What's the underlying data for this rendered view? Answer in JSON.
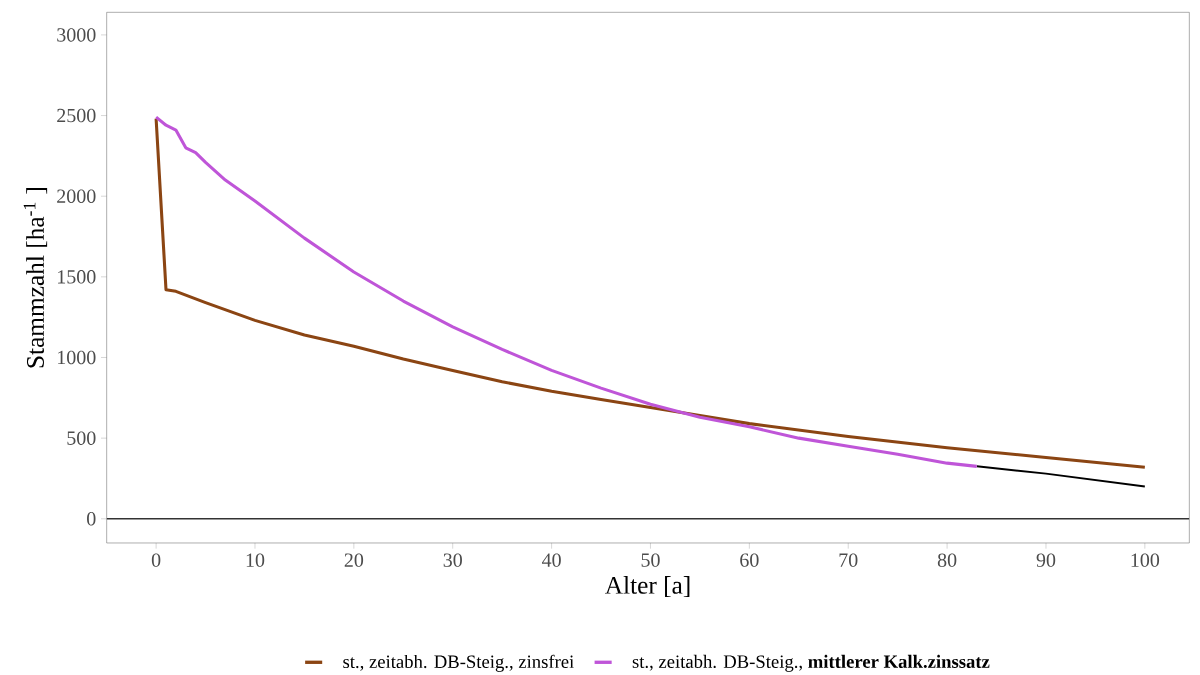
{
  "chart_data": {
    "type": "line",
    "xlabel": "Alter [a]",
    "ylabel": "Stammzahl [ha$^{-1}$ ]",
    "xlim": [
      -5,
      104.5
    ],
    "ylim": [
      -150,
      3140
    ],
    "xticks": [
      0,
      10,
      20,
      30,
      40,
      50,
      60,
      70,
      80,
      90,
      100
    ],
    "yticks": [
      0,
      500,
      1000,
      1500,
      2000,
      2500,
      3000
    ],
    "grid": false,
    "legend": "bottom",
    "line_style": "solid",
    "marker": "none",
    "ref_lines": [
      {
        "axis": "y",
        "value": 0,
        "color": "#333333"
      }
    ],
    "series": [
      {
        "color": "#000000",
        "x": [
          83,
          90,
          100
        ],
        "values": [
          325,
          280,
          200
        ]
      },
      {
        "name": "st., zeitabh. DB-Steig., zinsfrei",
        "color": "#8b4513",
        "x": [
          0,
          1,
          2,
          5,
          10,
          15,
          20,
          25,
          30,
          35,
          40,
          45,
          50,
          55,
          60,
          70,
          80,
          90,
          100
        ],
        "values": [
          2480,
          1420,
          1410,
          1340,
          1230,
          1140,
          1070,
          990,
          920,
          850,
          790,
          740,
          690,
          640,
          590,
          510,
          440,
          380,
          320
        ]
      },
      {
        "name": "st., zeitabh. DB-Steig., **mittlerer Kalk.zinssatz**",
        "color": "#bf55d8",
        "x": [
          0,
          1,
          2,
          3,
          4,
          5,
          7,
          10,
          15,
          20,
          25,
          30,
          35,
          40,
          45,
          50,
          55,
          60,
          65,
          70,
          75,
          80,
          83
        ],
        "values": [
          2490,
          2440,
          2410,
          2300,
          2270,
          2210,
          2100,
          1970,
          1740,
          1530,
          1350,
          1190,
          1050,
          920,
          810,
          710,
          630,
          570,
          500,
          450,
          400,
          345,
          325
        ]
      }
    ]
  }
}
